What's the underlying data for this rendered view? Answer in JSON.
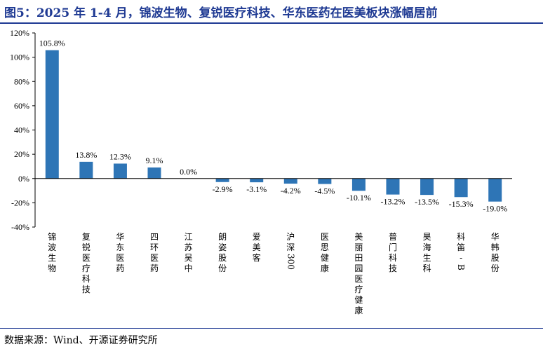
{
  "title": "图5：2025 年 1-4 月，锦波生物、复锐医疗科技、华东医药在医美板块涨幅居前",
  "source": "数据来源：Wind、开源证券研究所",
  "colors": {
    "bar": "#2e75b6",
    "accent": "#1f3a93"
  },
  "chart_data": {
    "type": "bar",
    "title": "",
    "xlabel": "",
    "ylabel": "",
    "ylim": [
      -40,
      120
    ],
    "yticks": [
      "-40%",
      "-20%",
      "0%",
      "20%",
      "40%",
      "60%",
      "80%",
      "100%",
      "120%"
    ],
    "grid": false,
    "categories": [
      "锦波生物",
      "复锐医疗科技",
      "华东医药",
      "四环医药",
      "江苏吴中",
      "朗姿股份",
      "爱美客",
      "沪深300",
      "医思健康",
      "美丽田园医疗健康",
      "普门科技",
      "昊海生科",
      "科笛-B",
      "华韩股份"
    ],
    "values": [
      105.8,
      13.8,
      12.3,
      9.1,
      0.0,
      -2.9,
      -3.1,
      -4.2,
      -4.5,
      -10.1,
      -13.2,
      -13.5,
      -15.3,
      -19.0
    ],
    "data_labels": [
      "105.8%",
      "13.8%",
      "12.3%",
      "9.1%",
      "0.0%",
      "-2.9%",
      "-3.1%",
      "-4.2%",
      "-4.5%",
      "-10.1%",
      "-13.2%",
      "-13.5%",
      "-15.3%",
      "-19.0%"
    ]
  }
}
